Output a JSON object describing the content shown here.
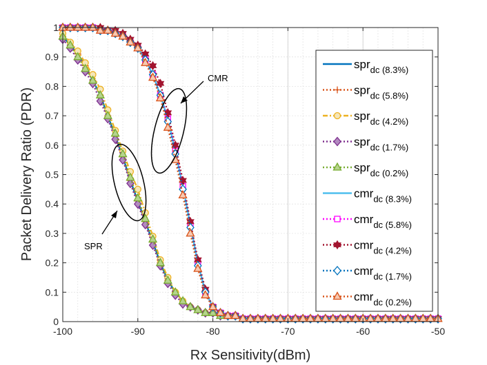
{
  "chart_data": {
    "type": "line",
    "xlabel": "Rx Sensitivity(dBm)",
    "ylabel": "Packet Delivery Ratio (PDR)",
    "xlim": [
      -100,
      -50
    ],
    "ylim": [
      0,
      1
    ],
    "xticks": [
      "-100",
      "-90",
      "-80",
      "-70",
      "-60",
      "-50"
    ],
    "yticks": [
      "0",
      "0.1",
      "0.2",
      "0.3",
      "0.4",
      "0.5",
      "0.6",
      "0.7",
      "0.8",
      "0.9",
      "1"
    ],
    "grid": true,
    "legend_position": "right",
    "x": [
      -100,
      -99,
      -98,
      -97,
      -96,
      -95,
      -94,
      -93,
      -92,
      -91,
      -90,
      -89,
      -88,
      -87,
      -86,
      -85,
      -84,
      -83,
      -82,
      -81,
      -80,
      -79,
      -78,
      -77,
      -76,
      -75,
      -74,
      -73,
      -72,
      -71,
      -70,
      -69,
      -68,
      -67,
      -66,
      -65,
      -64,
      -63,
      -62,
      -61,
      -60,
      -59,
      -58,
      -57,
      -56,
      -55,
      -54,
      -53,
      -52,
      -51,
      -50
    ],
    "series": [
      {
        "name": "spr",
        "sub": "dc (8.3%)",
        "color": "#0072BD",
        "dash": "solid",
        "marker": "none",
        "values": [
          0.97,
          0.94,
          0.91,
          0.87,
          0.82,
          0.77,
          0.7,
          0.63,
          0.56,
          0.48,
          0.41,
          0.34,
          0.27,
          0.2,
          0.14,
          0.1,
          0.07,
          0.05,
          0.04,
          0.03,
          0.03,
          0.02,
          0.02,
          0.02,
          0.01,
          0.01,
          0.01,
          0.01,
          0.01,
          0.01,
          0.01,
          0.01,
          0.01,
          0.01,
          0.01,
          0.01,
          0.01,
          0.01,
          0.01,
          0.01,
          0.01,
          0.01,
          0.01,
          0.01,
          0.01,
          0.01,
          0.01,
          0.01,
          0.01,
          0.01,
          0.01
        ]
      },
      {
        "name": "spr",
        "sub": "dc (5.8%)",
        "color": "#D95319",
        "dash": "dot",
        "marker": "plus",
        "values": [
          0.97,
          0.94,
          0.91,
          0.87,
          0.82,
          0.77,
          0.7,
          0.63,
          0.56,
          0.48,
          0.41,
          0.34,
          0.27,
          0.2,
          0.14,
          0.1,
          0.07,
          0.05,
          0.04,
          0.03,
          0.03,
          0.02,
          0.02,
          0.02,
          0.01,
          0.01,
          0.01,
          0.01,
          0.01,
          0.01,
          0.01,
          0.01,
          0.01,
          0.01,
          0.01,
          0.01,
          0.01,
          0.01,
          0.01,
          0.01,
          0.01,
          0.01,
          0.01,
          0.01,
          0.01,
          0.01,
          0.01,
          0.01,
          0.01,
          0.01,
          0.01
        ]
      },
      {
        "name": "spr",
        "sub": "dc (4.2%)",
        "color": "#EDB120",
        "dash": "dashdot",
        "marker": "circle",
        "values": [
          0.98,
          0.95,
          0.92,
          0.88,
          0.84,
          0.79,
          0.72,
          0.65,
          0.58,
          0.51,
          0.45,
          0.37,
          0.29,
          0.21,
          0.15,
          0.1,
          0.07,
          0.05,
          0.04,
          0.03,
          0.03,
          0.02,
          0.02,
          0.02,
          0.01,
          0.01,
          0.01,
          0.01,
          0.01,
          0.01,
          0.01,
          0.01,
          0.01,
          0.01,
          0.01,
          0.01,
          0.01,
          0.01,
          0.01,
          0.01,
          0.01,
          0.01,
          0.01,
          0.01,
          0.01,
          0.01,
          0.01,
          0.01,
          0.01,
          0.01,
          0.01
        ]
      },
      {
        "name": "spr",
        "sub": "dc (1.7%)",
        "color": "#7E2F8E",
        "dash": "dot",
        "marker": "diamond",
        "values": [
          0.96,
          0.93,
          0.89,
          0.85,
          0.81,
          0.75,
          0.69,
          0.62,
          0.55,
          0.47,
          0.4,
          0.33,
          0.26,
          0.19,
          0.13,
          0.09,
          0.06,
          0.05,
          0.04,
          0.03,
          0.03,
          0.02,
          0.02,
          0.02,
          0.01,
          0.01,
          0.01,
          0.01,
          0.01,
          0.01,
          0.01,
          0.01,
          0.01,
          0.01,
          0.01,
          0.01,
          0.01,
          0.01,
          0.01,
          0.01,
          0.01,
          0.01,
          0.01,
          0.01,
          0.01,
          0.01,
          0.01,
          0.01,
          0.01,
          0.01,
          0.01
        ]
      },
      {
        "name": "spr",
        "sub": "dc (0.2%)",
        "color": "#77AC30",
        "dash": "dot",
        "marker": "triangle",
        "values": [
          0.97,
          0.94,
          0.9,
          0.86,
          0.82,
          0.77,
          0.7,
          0.64,
          0.57,
          0.49,
          0.42,
          0.35,
          0.28,
          0.2,
          0.14,
          0.1,
          0.07,
          0.05,
          0.04,
          0.03,
          0.03,
          0.02,
          0.02,
          0.02,
          0.01,
          0.01,
          0.01,
          0.01,
          0.01,
          0.01,
          0.01,
          0.01,
          0.01,
          0.01,
          0.01,
          0.01,
          0.01,
          0.01,
          0.01,
          0.01,
          0.01,
          0.01,
          0.01,
          0.01,
          0.01,
          0.01,
          0.01,
          0.01,
          0.01,
          0.01,
          0.01
        ]
      },
      {
        "name": "cmr",
        "sub": "dc (8.3%)",
        "color": "#4DBEEE",
        "dash": "solid",
        "marker": "none",
        "values": [
          1.0,
          1.0,
          1.0,
          1.0,
          1.0,
          0.99,
          0.99,
          0.98,
          0.97,
          0.95,
          0.93,
          0.89,
          0.84,
          0.77,
          0.69,
          0.58,
          0.46,
          0.33,
          0.2,
          0.1,
          0.05,
          0.03,
          0.02,
          0.02,
          0.01,
          0.01,
          0.01,
          0.01,
          0.01,
          0.01,
          0.01,
          0.01,
          0.01,
          0.01,
          0.01,
          0.01,
          0.01,
          0.01,
          0.01,
          0.01,
          0.01,
          0.01,
          0.01,
          0.01,
          0.01,
          0.01,
          0.01,
          0.01,
          0.01,
          0.01,
          0.01
        ]
      },
      {
        "name": "cmr",
        "sub": "dc (5.8%)",
        "color": "#FF00FF",
        "dash": "dot",
        "marker": "square",
        "values": [
          1.0,
          1.0,
          1.0,
          1.0,
          1.0,
          0.99,
          0.99,
          0.98,
          0.97,
          0.95,
          0.93,
          0.89,
          0.84,
          0.77,
          0.69,
          0.58,
          0.46,
          0.33,
          0.2,
          0.1,
          0.05,
          0.03,
          0.02,
          0.02,
          0.01,
          0.01,
          0.01,
          0.01,
          0.01,
          0.01,
          0.01,
          0.01,
          0.01,
          0.01,
          0.01,
          0.01,
          0.01,
          0.01,
          0.01,
          0.01,
          0.01,
          0.01,
          0.01,
          0.01,
          0.01,
          0.01,
          0.01,
          0.01,
          0.01,
          0.01,
          0.01
        ]
      },
      {
        "name": "cmr",
        "sub": "dc (4.2%)",
        "color": "#A2142F",
        "dash": "dot",
        "marker": "hexagram",
        "values": [
          1.0,
          1.0,
          1.0,
          1.0,
          1.0,
          1.0,
          0.99,
          0.99,
          0.98,
          0.96,
          0.94,
          0.91,
          0.87,
          0.81,
          0.71,
          0.6,
          0.48,
          0.34,
          0.21,
          0.11,
          0.05,
          0.03,
          0.02,
          0.02,
          0.01,
          0.01,
          0.01,
          0.01,
          0.01,
          0.01,
          0.01,
          0.01,
          0.01,
          0.01,
          0.01,
          0.01,
          0.01,
          0.01,
          0.01,
          0.01,
          0.01,
          0.01,
          0.01,
          0.01,
          0.01,
          0.01,
          0.01,
          0.01,
          0.01,
          0.01,
          0.01
        ]
      },
      {
        "name": "cmr",
        "sub": "dc (1.7%)",
        "color": "#0072BD",
        "dash": "dot",
        "marker": "diamond",
        "values": [
          1.0,
          1.0,
          1.0,
          1.0,
          1.0,
          0.99,
          0.99,
          0.98,
          0.97,
          0.95,
          0.93,
          0.89,
          0.84,
          0.77,
          0.68,
          0.57,
          0.45,
          0.32,
          0.19,
          0.1,
          0.05,
          0.03,
          0.02,
          0.02,
          0.01,
          0.01,
          0.01,
          0.01,
          0.01,
          0.01,
          0.01,
          0.01,
          0.01,
          0.01,
          0.01,
          0.01,
          0.01,
          0.01,
          0.01,
          0.01,
          0.01,
          0.01,
          0.01,
          0.01,
          0.01,
          0.01,
          0.01,
          0.01,
          0.01,
          0.01,
          0.01
        ]
      },
      {
        "name": "cmr",
        "sub": "dc (0.2%)",
        "color": "#D95319",
        "dash": "dot",
        "marker": "triangle",
        "values": [
          1.0,
          1.0,
          1.0,
          1.0,
          1.0,
          0.99,
          0.99,
          0.98,
          0.97,
          0.95,
          0.93,
          0.88,
          0.83,
          0.76,
          0.66,
          0.55,
          0.43,
          0.3,
          0.18,
          0.09,
          0.05,
          0.03,
          0.02,
          0.02,
          0.01,
          0.01,
          0.01,
          0.01,
          0.01,
          0.01,
          0.01,
          0.01,
          0.01,
          0.01,
          0.01,
          0.01,
          0.01,
          0.01,
          0.01,
          0.01,
          0.01,
          0.01,
          0.01,
          0.01,
          0.01,
          0.01,
          0.01,
          0.01,
          0.01,
          0.01,
          0.01
        ]
      }
    ],
    "annotations": [
      {
        "text": "CMR",
        "target_x": -86,
        "target_y": 0.64
      },
      {
        "text": "SPR",
        "target_x": -91,
        "target_y": 0.48
      }
    ]
  }
}
